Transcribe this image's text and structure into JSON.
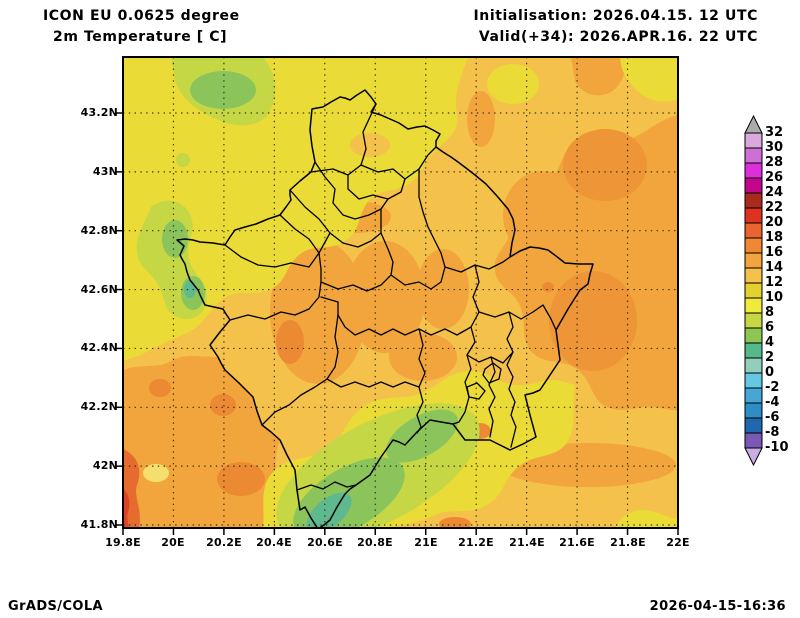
{
  "header": {
    "line1": "ICON EU 0.0625 degree",
    "line2": "2m Temperature [ C]",
    "init": "Initialisation: 2026.04.15. 12 UTC",
    "valid": "Valid(+34): 2026.APR.16. 22 UTC"
  },
  "axes": {
    "lat_labels": [
      "43.2N",
      "43N",
      "42.8N",
      "42.6N",
      "42.4N",
      "42.2N",
      "42N",
      "41.8N"
    ],
    "lon_labels": [
      "19.8E",
      "20E",
      "20.2E",
      "20.4E",
      "20.6E",
      "20.8E",
      "21E",
      "21.2E",
      "21.4E",
      "21.6E",
      "21.8E",
      "22E"
    ]
  },
  "colorbar": {
    "unit": "C",
    "boundary_labels": [
      "32",
      "30",
      "28",
      "26",
      "24",
      "22",
      "20",
      "18",
      "16",
      "14",
      "12",
      "10",
      "8",
      "6",
      "4",
      "2",
      "0",
      "-2",
      "-4",
      "-6",
      "-8",
      "-10"
    ],
    "over_color": "#ABABAB",
    "under_color": "#C9AEE3",
    "segment_colors_top_to_bottom": [
      "#D9A8DC",
      "#CF6FD6",
      "#DC2FDC",
      "#C2078C",
      "#AB2A1E",
      "#DE3220",
      "#EA6430",
      "#EE8833",
      "#F2A53C",
      "#F4C14B",
      "#E4D02E",
      "#F0EA3C",
      "#C6D745",
      "#8FC653",
      "#56B98B",
      "#93CDBB",
      "#66C7E2",
      "#47A6D8",
      "#2F8DC6",
      "#2068AE",
      "#7A58B5"
    ]
  },
  "footer": {
    "left": "GrADS/COLA",
    "right": "2026-04-15-16:36"
  }
}
